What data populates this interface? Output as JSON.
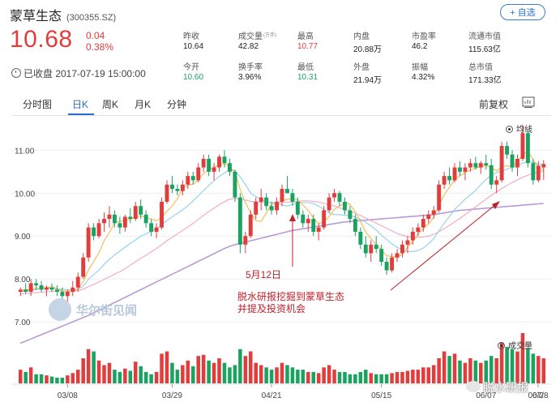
{
  "header": {
    "stock_name": "蒙草生态",
    "stock_code": "(300355.SZ)",
    "add_button": "+ 自选",
    "price": "10.68",
    "change": "0.04",
    "change_pct": "0.38%",
    "closed_status": "已收盘 2017-07-19 15:00:00"
  },
  "stats": [
    {
      "label": "昨收",
      "value": "10.64",
      "unit": "",
      "color": "normal"
    },
    {
      "label": "成交量",
      "value": "42.82",
      "unit": "(万手)",
      "color": "normal"
    },
    {
      "label": "最高",
      "value": "10.77",
      "unit": "",
      "color": "red"
    },
    {
      "label": "内盘",
      "value": "20.88万",
      "unit": "",
      "color": "normal"
    },
    {
      "label": "市盈率",
      "value": "46.2",
      "unit": "",
      "color": "normal"
    },
    {
      "label": "流通市值",
      "value": "115.63亿",
      "unit": "",
      "color": "normal"
    },
    {
      "label": "今开",
      "value": "10.60",
      "unit": "",
      "color": "green"
    },
    {
      "label": "换手率",
      "value": "3.96%",
      "unit": "",
      "color": "normal"
    },
    {
      "label": "最低",
      "value": "10.31",
      "unit": "",
      "color": "green"
    },
    {
      "label": "外盘",
      "value": "21.94万",
      "unit": "",
      "color": "normal"
    },
    {
      "label": "振幅",
      "value": "4.32%",
      "unit": "",
      "color": "normal"
    },
    {
      "label": "总市值",
      "value": "171.33亿",
      "unit": "",
      "color": "normal"
    }
  ],
  "tabs": [
    "分时图",
    "日K",
    "周K",
    "月K",
    "分钟"
  ],
  "active_tab": "日K",
  "fq_label": "前复权",
  "ma_legend": "均线",
  "vol_legend": "成交量",
  "annotation_date": "5月12日",
  "annotation_line1": "脱水研报挖掘到蒙草生态",
  "annotation_line2": "并提及投资机会",
  "watermark": "华尔街见闻",
  "brand": "脱水研报",
  "colors": {
    "up": "#e23d3d",
    "down": "#1aa260",
    "accent": "#2a6fd0",
    "ma5": "#f5b94c",
    "ma10": "#8fd0ec",
    "ma20": "#f2a6c4",
    "ma60": "#b99ad4",
    "annotation": "#c0202a"
  },
  "chart_data": {
    "type": "candlestick",
    "y_ticks": [
      "11.00",
      "10.00",
      "9.00",
      "8.00",
      "7.00"
    ],
    "x_ticks": [
      "03/08",
      "03/29",
      "04/21",
      "05/15",
      "06/07",
      "06/28",
      "07/"
    ],
    "ylim": [
      6.85,
      11.65
    ],
    "candles": [
      [
        7.7,
        7.8,
        7.6,
        7.75
      ],
      [
        7.75,
        7.9,
        7.65,
        7.7
      ],
      [
        7.7,
        8.0,
        7.6,
        7.9
      ],
      [
        7.9,
        8.0,
        7.75,
        7.85
      ],
      [
        7.85,
        7.95,
        7.7,
        7.75
      ],
      [
        7.75,
        7.85,
        7.6,
        7.8
      ],
      [
        7.8,
        7.9,
        7.7,
        7.75
      ],
      [
        7.75,
        7.85,
        7.6,
        7.7
      ],
      [
        7.7,
        7.8,
        7.5,
        7.6
      ],
      [
        7.6,
        7.75,
        7.45,
        7.7
      ],
      [
        7.7,
        7.95,
        7.6,
        7.8
      ],
      [
        7.8,
        8.15,
        7.7,
        8.05
      ],
      [
        8.05,
        8.6,
        8.0,
        8.5
      ],
      [
        8.5,
        9.3,
        8.4,
        9.2
      ],
      [
        9.2,
        9.3,
        8.9,
        9.0
      ],
      [
        9.0,
        9.4,
        8.95,
        9.3
      ],
      [
        9.3,
        9.55,
        9.1,
        9.4
      ],
      [
        9.4,
        9.7,
        9.2,
        9.5
      ],
      [
        9.5,
        9.6,
        9.2,
        9.3
      ],
      [
        9.3,
        9.45,
        9.05,
        9.2
      ],
      [
        9.2,
        9.5,
        9.1,
        9.45
      ],
      [
        9.45,
        9.65,
        9.3,
        9.4
      ],
      [
        9.4,
        9.8,
        9.35,
        9.7
      ],
      [
        9.7,
        9.85,
        9.4,
        9.5
      ],
      [
        9.5,
        9.6,
        9.2,
        9.3
      ],
      [
        9.3,
        9.4,
        9.0,
        9.1
      ],
      [
        9.1,
        9.3,
        8.95,
        9.2
      ],
      [
        9.2,
        9.9,
        9.15,
        9.8
      ],
      [
        9.8,
        10.3,
        9.75,
        10.2
      ],
      [
        10.2,
        10.4,
        10.0,
        10.1
      ],
      [
        10.1,
        10.2,
        9.95,
        10.05
      ],
      [
        10.05,
        10.3,
        9.95,
        10.2
      ],
      [
        10.2,
        10.5,
        10.1,
        10.4
      ],
      [
        10.4,
        10.5,
        10.2,
        10.3
      ],
      [
        10.3,
        10.7,
        10.25,
        10.6
      ],
      [
        10.6,
        10.9,
        10.5,
        10.8
      ],
      [
        10.8,
        10.9,
        10.4,
        10.5
      ],
      [
        10.5,
        10.7,
        10.3,
        10.6
      ],
      [
        10.6,
        10.9,
        10.5,
        10.85
      ],
      [
        10.85,
        11.0,
        10.6,
        10.7
      ],
      [
        10.7,
        10.8,
        10.4,
        10.5
      ],
      [
        10.5,
        10.55,
        9.8,
        9.9
      ],
      [
        9.9,
        10.0,
        8.6,
        8.8
      ],
      [
        8.8,
        9.1,
        8.6,
        9.0
      ],
      [
        9.0,
        9.6,
        8.95,
        9.5
      ],
      [
        9.5,
        9.9,
        9.4,
        9.8
      ],
      [
        9.8,
        10.1,
        9.6,
        9.9
      ],
      [
        9.9,
        10.0,
        9.6,
        9.7
      ],
      [
        9.7,
        9.8,
        9.5,
        9.6
      ],
      [
        9.6,
        9.9,
        9.5,
        9.8
      ],
      [
        9.8,
        10.2,
        9.7,
        10.1
      ],
      [
        10.1,
        10.4,
        10.0,
        10.0
      ],
      [
        10.0,
        10.1,
        9.7,
        9.8
      ],
      [
        9.8,
        9.9,
        9.4,
        9.5
      ],
      [
        9.5,
        9.6,
        9.2,
        9.3
      ],
      [
        9.3,
        9.5,
        9.1,
        9.4
      ],
      [
        9.4,
        9.5,
        9.0,
        9.1
      ],
      [
        9.1,
        9.3,
        8.9,
        9.2
      ],
      [
        9.2,
        9.7,
        9.15,
        9.6
      ],
      [
        9.6,
        10.0,
        9.55,
        9.9
      ],
      [
        9.9,
        10.1,
        9.8,
        10.0
      ],
      [
        10.0,
        10.05,
        9.7,
        9.8
      ],
      [
        9.8,
        9.9,
        9.5,
        9.6
      ],
      [
        9.6,
        9.7,
        9.3,
        9.4
      ],
      [
        9.4,
        9.5,
        9.0,
        9.1
      ],
      [
        9.1,
        9.2,
        8.7,
        8.8
      ],
      [
        8.8,
        9.0,
        8.5,
        8.6
      ],
      [
        8.6,
        8.9,
        8.4,
        8.8
      ],
      [
        8.8,
        9.0,
        8.6,
        8.7
      ],
      [
        8.7,
        8.8,
        8.3,
        8.4
      ],
      [
        8.4,
        8.5,
        8.1,
        8.2
      ],
      [
        8.2,
        8.6,
        8.15,
        8.5
      ],
      [
        8.5,
        8.7,
        8.4,
        8.6
      ],
      [
        8.6,
        8.9,
        8.5,
        8.8
      ],
      [
        8.8,
        9.0,
        8.6,
        8.9
      ],
      [
        8.9,
        9.2,
        8.8,
        9.1
      ],
      [
        9.1,
        9.3,
        9.0,
        9.2
      ],
      [
        9.2,
        9.5,
        9.1,
        9.4
      ],
      [
        9.4,
        9.6,
        9.3,
        9.5
      ],
      [
        9.5,
        9.7,
        9.4,
        9.6
      ],
      [
        9.6,
        10.3,
        9.55,
        10.2
      ],
      [
        10.2,
        10.5,
        10.1,
        10.4
      ],
      [
        10.4,
        10.6,
        10.2,
        10.3
      ],
      [
        10.3,
        10.7,
        10.25,
        10.6
      ],
      [
        10.6,
        10.75,
        10.4,
        10.5
      ],
      [
        10.5,
        10.7,
        10.3,
        10.6
      ],
      [
        10.6,
        10.8,
        10.5,
        10.7
      ],
      [
        10.7,
        10.85,
        10.55,
        10.6
      ],
      [
        10.6,
        10.75,
        10.45,
        10.7
      ],
      [
        10.7,
        10.9,
        10.55,
        10.65
      ],
      [
        10.65,
        10.8,
        10.1,
        10.2
      ],
      [
        10.2,
        10.4,
        10.0,
        10.3
      ],
      [
        10.3,
        11.2,
        10.25,
        11.1
      ],
      [
        11.1,
        11.2,
        10.8,
        10.9
      ],
      [
        10.9,
        11.0,
        10.5,
        10.6
      ],
      [
        10.6,
        10.9,
        10.4,
        10.8
      ],
      [
        10.8,
        11.6,
        10.75,
        11.4
      ],
      [
        11.4,
        11.5,
        10.6,
        10.7
      ],
      [
        10.7,
        10.8,
        10.2,
        10.3
      ],
      [
        10.3,
        10.75,
        10.25,
        10.64
      ],
      [
        10.6,
        10.77,
        10.31,
        10.68
      ]
    ],
    "volumes": [
      12,
      10,
      14,
      8,
      8,
      7,
      6,
      5,
      5,
      7,
      9,
      12,
      22,
      30,
      28,
      20,
      16,
      18,
      12,
      10,
      13,
      11,
      19,
      15,
      10,
      8,
      10,
      26,
      28,
      18,
      12,
      16,
      20,
      15,
      24,
      25,
      20,
      18,
      22,
      18,
      14,
      16,
      30,
      24,
      28,
      18,
      16,
      14,
      12,
      14,
      18,
      16,
      14,
      12,
      12,
      10,
      10,
      9,
      14,
      16,
      12,
      10,
      10,
      8,
      8,
      10,
      12,
      9,
      8,
      8,
      8,
      9,
      10,
      10,
      11,
      12,
      12,
      14,
      14,
      16,
      22,
      28,
      24,
      26,
      20,
      18,
      22,
      20,
      18,
      20,
      24,
      22,
      36,
      32,
      30,
      28,
      44,
      30,
      26,
      24,
      22
    ],
    "ma5": [
      7.74,
      7.75,
      7.76,
      7.78,
      7.79,
      7.8,
      7.82,
      7.77,
      7.72,
      7.71,
      7.71,
      7.77,
      7.93,
      8.21,
      8.41,
      8.61,
      8.89,
      9.08,
      9.31,
      9.34,
      9.37,
      9.39,
      9.45,
      9.47,
      9.43,
      9.4,
      9.36,
      9.42,
      9.58,
      9.7,
      9.87,
      10.11,
      10.19,
      10.21,
      10.31,
      10.46,
      10.54,
      10.6,
      10.67,
      10.69,
      10.62,
      10.49,
      10.09,
      9.78,
      9.54,
      9.36,
      9.34,
      9.54,
      9.75,
      9.76,
      9.82,
      9.86,
      9.88,
      9.84,
      9.72,
      9.6,
      9.42,
      9.3,
      9.32,
      9.46,
      9.62,
      9.7,
      9.78,
      9.74,
      9.56,
      9.34,
      9.1,
      8.94,
      8.8,
      8.68,
      8.54,
      8.52,
      8.5,
      8.58,
      8.74,
      8.88,
      9.04,
      9.18,
      9.28,
      9.44,
      9.72,
      9.96,
      10.14,
      10.32,
      10.4,
      10.48,
      10.54,
      10.58,
      10.62,
      10.64,
      10.6,
      10.52,
      10.62,
      10.64,
      10.62,
      10.74,
      10.9,
      10.98,
      10.78,
      10.6,
      10.54
    ],
    "ma10": [
      7.7,
      7.72,
      7.74,
      7.75,
      7.76,
      7.77,
      7.78,
      7.77,
      7.76,
      7.75,
      7.75,
      7.76,
      7.83,
      7.99,
      8.1,
      8.21,
      8.34,
      8.46,
      8.56,
      8.65,
      8.74,
      8.83,
      8.91,
      9.0,
      9.05,
      9.11,
      9.17,
      9.26,
      9.36,
      9.45,
      9.53,
      9.61,
      9.71,
      9.82,
      9.94,
      10.06,
      10.18,
      10.29,
      10.39,
      10.47,
      10.54,
      10.52,
      10.38,
      10.2,
      10.0,
      9.92,
      9.86,
      9.8,
      9.78,
      9.76,
      9.72,
      9.7,
      9.74,
      9.78,
      9.78,
      9.78,
      9.76,
      9.7,
      9.62,
      9.54,
      9.5,
      9.5,
      9.48,
      9.48,
      9.44,
      9.4,
      9.32,
      9.24,
      9.14,
      9.02,
      8.92,
      8.82,
      8.74,
      8.68,
      8.64,
      8.64,
      8.66,
      8.72,
      8.82,
      8.94,
      9.12,
      9.3,
      9.46,
      9.62,
      9.74,
      9.86,
      9.96,
      10.06,
      10.2,
      10.32,
      10.42,
      10.48,
      10.52,
      10.56,
      10.6,
      10.64,
      10.7,
      10.74,
      10.72,
      10.68,
      10.66
    ],
    "ma20": [
      7.65,
      7.66,
      7.67,
      7.68,
      7.69,
      7.7,
      7.71,
      7.72,
      7.72,
      7.72,
      7.72,
      7.73,
      7.76,
      7.82,
      7.87,
      7.93,
      7.99,
      8.05,
      8.11,
      8.17,
      8.24,
      8.32,
      8.4,
      8.48,
      8.55,
      8.63,
      8.71,
      8.8,
      8.89,
      8.97,
      9.05,
      9.13,
      9.21,
      9.3,
      9.39,
      9.48,
      9.57,
      9.65,
      9.73,
      9.8,
      9.86,
      9.88,
      9.86,
      9.84,
      9.81,
      9.8,
      9.79,
      9.78,
      9.78,
      9.78,
      9.78,
      9.79,
      9.8,
      9.81,
      9.82,
      9.82,
      9.81,
      9.79,
      9.76,
      9.73,
      9.7,
      9.66,
      9.62,
      9.58,
      9.53,
      9.48,
      9.42,
      9.36,
      9.3,
      9.24,
      9.18,
      9.12,
      9.06,
      9.02,
      8.99,
      8.97,
      8.97,
      8.98,
      9.0,
      9.04,
      9.1,
      9.17,
      9.25,
      9.33,
      9.41,
      9.5,
      9.59,
      9.68,
      9.77,
      9.86,
      9.95,
      10.03,
      10.11,
      10.18,
      10.25,
      10.31,
      10.37,
      10.42,
      10.46,
      10.49,
      10.52
    ],
    "ma60": [
      6.5,
      6.55,
      6.6,
      6.65,
      6.7,
      6.75,
      6.8,
      6.85,
      6.9,
      6.95,
      7.0,
      7.05,
      7.1,
      7.15,
      7.21,
      7.27,
      7.33,
      7.39,
      7.45,
      7.51,
      7.57,
      7.63,
      7.69,
      7.75,
      7.81,
      7.87,
      7.93,
      7.99,
      8.05,
      8.11,
      8.17,
      8.23,
      8.29,
      8.35,
      8.41,
      8.47,
      8.53,
      8.59,
      8.65,
      8.71,
      8.76,
      8.8,
      8.83,
      8.86,
      8.89,
      8.92,
      8.95,
      8.98,
      9.01,
      9.04,
      9.07,
      9.1,
      9.13,
      9.15,
      9.17,
      9.19,
      9.21,
      9.23,
      9.25,
      9.27,
      9.29,
      9.31,
      9.33,
      9.34,
      9.35,
      9.36,
      9.37,
      9.38,
      9.39,
      9.4,
      9.41,
      9.42,
      9.43,
      9.44,
      9.45,
      9.46,
      9.47,
      9.48,
      9.49,
      9.5,
      9.52,
      9.54,
      9.56,
      9.58,
      9.6,
      9.61,
      9.62,
      9.63,
      9.64,
      9.65,
      9.66,
      9.67,
      9.68,
      9.69,
      9.7,
      9.71,
      9.72,
      9.73,
      9.74,
      9.75,
      9.76
    ]
  }
}
